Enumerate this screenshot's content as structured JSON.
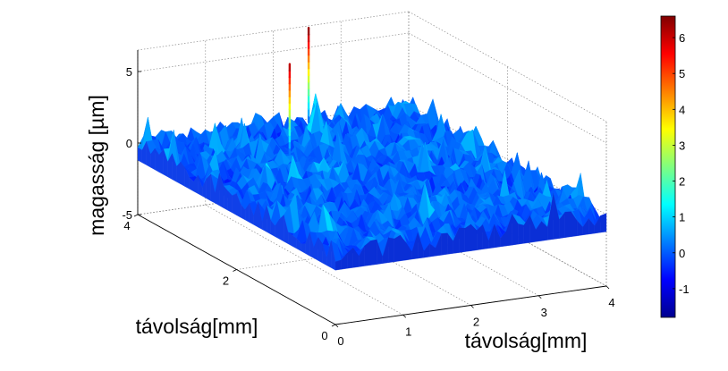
{
  "chart_data": {
    "type": "surface",
    "zlabel": "magasság [µm]",
    "xlabel": "távolság[mm]",
    "ylabel": "távolság[mm]",
    "x_ticks": [
      "0",
      "1",
      "2",
      "3",
      "4"
    ],
    "y_ticks": [
      "0",
      "2",
      "4"
    ],
    "z_ticks": [
      "-5",
      "0",
      "5"
    ],
    "xlim": [
      0,
      4
    ],
    "ylim": [
      0,
      4
    ],
    "zlim": [
      -5,
      6.5
    ],
    "grid": true,
    "colormap": "jet",
    "colorbar": {
      "range": [
        -1.8,
        6.6
      ],
      "ticks": [
        "-1",
        "0",
        "1",
        "2",
        "3",
        "4",
        "5",
        "6"
      ],
      "placement": "right"
    },
    "surface": {
      "baseline_um": 0,
      "noise_amplitude_um": 1.5,
      "spikes": [
        {
          "x_mm": 1.55,
          "y_mm": 3.05,
          "height_um": 6.3
        },
        {
          "x_mm": 2.45,
          "y_mm": 3.9,
          "height_um": 6.6
        }
      ]
    }
  }
}
